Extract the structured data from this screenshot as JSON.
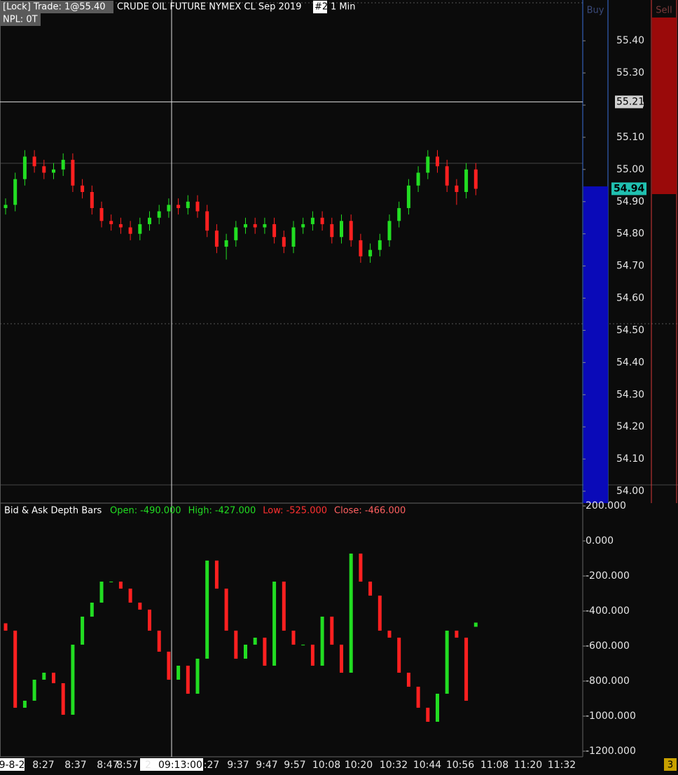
{
  "header": {
    "lock_label": "[Lock] Trade: 1@55.40",
    "instrument": "CRUDE OIL FUTURE NYMEX CL Sep 2019",
    "tab": "#2",
    "interval": "1 Min",
    "npl": "NPL: 0T"
  },
  "ladder": {
    "buy_header": "Buy",
    "sell_header": "Sell",
    "badge": "3"
  },
  "time_axis": {
    "labels": [
      "9-8-2",
      "8:27",
      "8:37",
      "8:47",
      "8:57",
      ":27",
      "9:37",
      "9:47",
      "9:57",
      "10:08",
      "10:20",
      "10:32",
      "10:44",
      "10:56",
      "11:08",
      "11:20",
      "11:32"
    ],
    "crosshair_prefix": "2",
    "crosshair_label": "09:13:00"
  },
  "chart_data": [
    {
      "type": "candlestick",
      "up_color": "#22dd22",
      "down_color": "#ff2020",
      "open": [
        54.88,
        54.89,
        54.97,
        55.04,
        55.01,
        54.99,
        55.0,
        55.03,
        54.95,
        54.93,
        54.88,
        54.84,
        54.83,
        54.82,
        54.8,
        54.83,
        54.85,
        54.87,
        54.89,
        54.88,
        54.9,
        54.87,
        54.81,
        54.76,
        54.78,
        54.82,
        54.83,
        54.82,
        54.83,
        54.79,
        54.76,
        54.82,
        54.83,
        54.85,
        54.83,
        54.79,
        54.84,
        54.78,
        54.73,
        54.75,
        54.78,
        54.84,
        54.88,
        54.95,
        54.99,
        55.04,
        55.01,
        54.95,
        54.93,
        55.0
      ],
      "high": [
        54.91,
        54.99,
        55.06,
        55.06,
        55.03,
        55.02,
        55.05,
        55.05,
        54.97,
        54.95,
        54.9,
        54.86,
        54.85,
        54.84,
        54.85,
        54.87,
        54.89,
        54.91,
        54.91,
        54.92,
        54.92,
        54.89,
        54.83,
        54.8,
        54.84,
        54.85,
        54.85,
        54.85,
        54.85,
        54.81,
        54.84,
        54.85,
        54.87,
        54.87,
        54.85,
        54.86,
        54.86,
        54.8,
        54.77,
        54.8,
        54.86,
        54.9,
        54.97,
        55.01,
        55.06,
        55.06,
        55.03,
        54.97,
        55.02,
        55.02
      ],
      "low": [
        54.86,
        54.87,
        54.95,
        54.99,
        54.97,
        54.97,
        54.98,
        54.93,
        54.91,
        54.86,
        54.82,
        54.81,
        54.8,
        54.78,
        54.78,
        54.81,
        54.83,
        54.85,
        54.86,
        54.86,
        54.85,
        54.79,
        54.74,
        54.72,
        54.76,
        54.8,
        54.8,
        54.8,
        54.77,
        54.74,
        54.74,
        54.8,
        54.81,
        54.81,
        54.77,
        54.77,
        54.76,
        54.71,
        54.71,
        54.73,
        54.76,
        54.82,
        54.86,
        54.93,
        54.97,
        54.99,
        54.93,
        54.89,
        54.91,
        54.92
      ],
      "close": [
        54.89,
        54.97,
        55.04,
        55.01,
        54.99,
        55.0,
        55.03,
        54.95,
        54.93,
        54.88,
        54.84,
        54.83,
        54.82,
        54.8,
        54.83,
        54.85,
        54.87,
        54.89,
        54.88,
        54.9,
        54.87,
        54.81,
        54.76,
        54.78,
        54.82,
        54.83,
        54.82,
        54.83,
        54.79,
        54.76,
        54.82,
        54.83,
        54.85,
        54.83,
        54.79,
        54.84,
        54.78,
        54.73,
        54.75,
        54.78,
        54.84,
        54.88,
        54.95,
        54.99,
        55.04,
        55.01,
        54.95,
        54.93,
        55.0,
        54.94
      ],
      "ylim": [
        53.963,
        55.518
      ],
      "yticks": [
        {
          "value": 55.4,
          "label": "55.40"
        },
        {
          "value": 55.3,
          "label": "55.30"
        },
        {
          "value": 55.2,
          "label": "55.20"
        },
        {
          "value": 55.1,
          "label": "55.10"
        },
        {
          "value": 55.0,
          "label": "55.00"
        },
        {
          "value": 54.9,
          "label": "54.90"
        },
        {
          "value": 54.8,
          "label": "54.80"
        },
        {
          "value": 54.7,
          "label": "54.70"
        },
        {
          "value": 54.6,
          "label": "54.60"
        },
        {
          "value": 54.5,
          "label": "54.50"
        },
        {
          "value": 54.4,
          "label": "54.40"
        },
        {
          "value": 54.3,
          "label": "54.30"
        },
        {
          "value": 54.2,
          "label": "54.20"
        },
        {
          "value": 54.1,
          "label": "54.10"
        },
        {
          "value": 54.0,
          "label": "54.00"
        }
      ],
      "crosshair_price": 55.21,
      "last_price": 54.94
    },
    {
      "type": "depth-bars",
      "title": "Bid & Ask Depth Bars",
      "up_color": "#22dd22",
      "down_color": "#ff2020",
      "legend": [
        {
          "label": "Open:",
          "text": "-490.000",
          "color": "#22dd22"
        },
        {
          "label": "High:",
          "text": "-427.000",
          "color": "#22dd22"
        },
        {
          "label": "Low:",
          "text": "-525.000",
          "color": "#ff3030"
        },
        {
          "label": "Close:",
          "text": "-466.000",
          "color": "#ff6060"
        }
      ],
      "open": [
        -470,
        -512,
        -952,
        -912,
        -792,
        -752,
        -812,
        -992,
        -592,
        -432,
        -352,
        -232,
        -232,
        -272,
        -352,
        -392,
        -512,
        -632,
        -792,
        -712,
        -872,
        -672,
        -112,
        -272,
        -512,
        -672,
        -592,
        -552,
        -712,
        -232,
        -512,
        -592,
        -592,
        -712,
        -432,
        -592,
        -752,
        -72,
        -232,
        -312,
        -512,
        -552,
        -752,
        -832,
        -952,
        -1032,
        -872,
        -512,
        -552,
        -490
      ],
      "close": [
        -512,
        -952,
        -912,
        -792,
        -752,
        -812,
        -992,
        -592,
        -432,
        -352,
        -232,
        -232,
        -272,
        -352,
        -392,
        -512,
        -632,
        -792,
        -712,
        -872,
        -672,
        -112,
        -272,
        -512,
        -672,
        -592,
        -552,
        -712,
        -232,
        -512,
        -592,
        -592,
        -712,
        -432,
        -592,
        -752,
        -72,
        -232,
        -312,
        -512,
        -552,
        -752,
        -832,
        -952,
        -1032,
        -872,
        -512,
        -552,
        -912,
        -466
      ],
      "ylim": [
        -1232,
        216
      ],
      "yticks": [
        {
          "value": 200,
          "label": "200.000"
        },
        {
          "value": 0,
          "label": "0.000"
        },
        {
          "value": -200,
          "label": "-200.000"
        },
        {
          "value": -400,
          "label": "-400.000"
        },
        {
          "value": -600,
          "label": "-600.000"
        },
        {
          "value": -800,
          "label": "-800.000"
        },
        {
          "value": -1000,
          "label": "-1000.000"
        },
        {
          "value": -1200,
          "label": "-1200.000"
        }
      ]
    }
  ]
}
